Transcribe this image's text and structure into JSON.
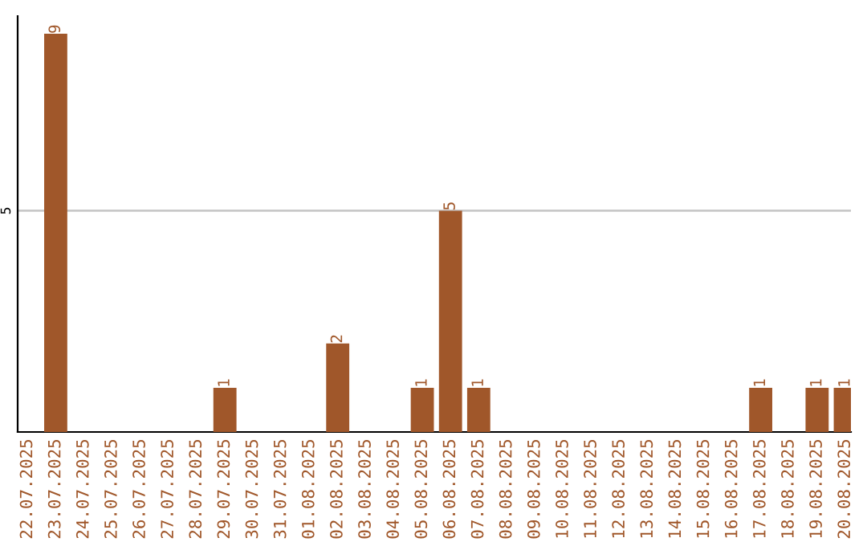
{
  "chart_data": {
    "type": "bar",
    "categories": [
      "22.07.2025",
      "23.07.2025",
      "24.07.2025",
      "25.07.2025",
      "26.07.2025",
      "27.07.2025",
      "28.07.2025",
      "29.07.2025",
      "30.07.2025",
      "31.07.2025",
      "01.08.2025",
      "02.08.2025",
      "03.08.2025",
      "04.08.2025",
      "05.08.2025",
      "06.08.2025",
      "07.08.2025",
      "08.08.2025",
      "09.08.2025",
      "10.08.2025",
      "11.08.2025",
      "12.08.2025",
      "13.08.2025",
      "14.08.2025",
      "15.08.2025",
      "16.08.2025",
      "17.08.2025",
      "18.08.2025",
      "19.08.2025",
      "20.08.2025"
    ],
    "values": [
      0,
      9,
      0,
      0,
      0,
      0,
      0,
      1,
      0,
      0,
      0,
      2,
      0,
      0,
      1,
      5,
      1,
      0,
      0,
      0,
      0,
      0,
      0,
      0,
      0,
      0,
      1,
      0,
      1,
      1
    ],
    "value_labels": [
      null,
      "9",
      null,
      null,
      null,
      null,
      null,
      "1",
      null,
      null,
      null,
      "2",
      null,
      null,
      "1",
      "5",
      "1",
      null,
      null,
      null,
      null,
      null,
      null,
      null,
      null,
      null,
      "1",
      null,
      "1",
      "1"
    ],
    "color": "#a0572a",
    "ylim": [
      0,
      9.4
    ],
    "yticks": [
      5
    ],
    "grid": "y"
  }
}
